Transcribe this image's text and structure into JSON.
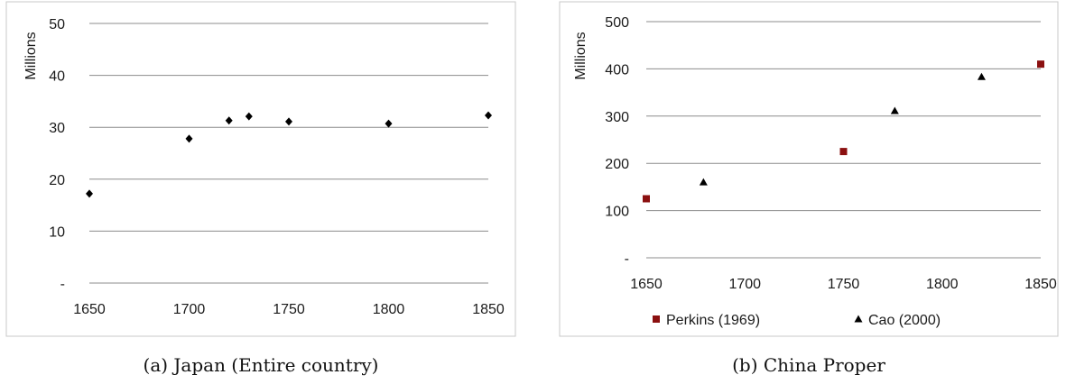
{
  "charts": [
    {
      "caption": "(a) Japan (Entire country)",
      "chart_data": {
        "type": "scatter",
        "title": "",
        "xlabel": "",
        "ylabel": "Millions",
        "xlim": [
          1650,
          1850
        ],
        "ylim": [
          0,
          50
        ],
        "x_ticks": [
          1650,
          1700,
          1750,
          1800,
          1850
        ],
        "y_ticks": [
          {
            "value": 0,
            "label": "-"
          },
          {
            "value": 10,
            "label": "10"
          },
          {
            "value": 20,
            "label": "20"
          },
          {
            "value": 30,
            "label": "30"
          },
          {
            "value": 40,
            "label": "40"
          },
          {
            "value": 50,
            "label": "50"
          }
        ],
        "grid": "horizontal",
        "legend": "none",
        "series": [
          {
            "marker": "diamond",
            "color": "#000000",
            "points": [
              {
                "x": 1650,
                "y": 17.2
              },
              {
                "x": 1700,
                "y": 27.8
              },
              {
                "x": 1720,
                "y": 31.3
              },
              {
                "x": 1730,
                "y": 32.1
              },
              {
                "x": 1750,
                "y": 31.1
              },
              {
                "x": 1800,
                "y": 30.7
              },
              {
                "x": 1850,
                "y": 32.3
              }
            ]
          }
        ]
      }
    },
    {
      "caption": "(b) China Proper",
      "chart_data": {
        "type": "scatter",
        "title": "",
        "xlabel": "",
        "ylabel": "Millions",
        "xlim": [
          1650,
          1850
        ],
        "ylim": [
          0,
          500
        ],
        "x_ticks": [
          1650,
          1700,
          1750,
          1800,
          1850
        ],
        "y_ticks": [
          {
            "value": 0,
            "label": "-"
          },
          {
            "value": 100,
            "label": "100"
          },
          {
            "value": 200,
            "label": "200"
          },
          {
            "value": 300,
            "label": "300"
          },
          {
            "value": 400,
            "label": "400"
          },
          {
            "value": 500,
            "label": "500"
          }
        ],
        "grid": "horizontal",
        "legend": "bottom",
        "series": [
          {
            "name": "Perkins (1969)",
            "marker": "square",
            "color": "#8b1010",
            "points": [
              {
                "x": 1650,
                "y": 125
              },
              {
                "x": 1750,
                "y": 225
              },
              {
                "x": 1850,
                "y": 410
              }
            ]
          },
          {
            "name": "Cao (2000)",
            "marker": "triangle",
            "color": "#000000",
            "points": [
              {
                "x": 1679,
                "y": 160
              },
              {
                "x": 1776,
                "y": 311
              },
              {
                "x": 1820,
                "y": 383
              }
            ]
          }
        ]
      }
    }
  ]
}
